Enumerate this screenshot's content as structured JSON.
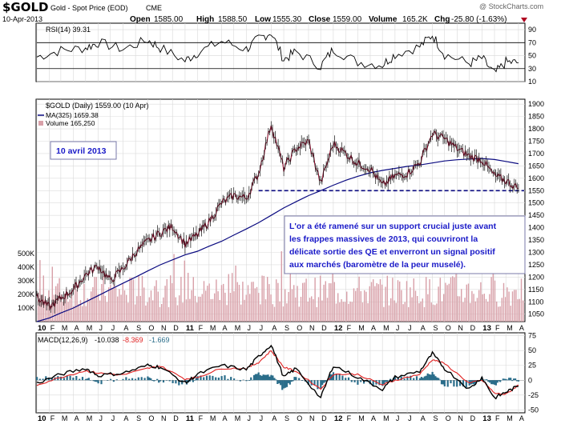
{
  "header": {
    "symbol": "$GOLD",
    "name": "Gold - Spot Price (EOD)",
    "exchange": "CME",
    "copyright": "@ StockCharts.com",
    "date": "10-Apr-2013",
    "open_label": "Open",
    "open": "1585.00",
    "high_label": "High",
    "high": "1588.50",
    "low_label": "Low",
    "low": "1555.30",
    "close_label": "Close",
    "close": "1559.00",
    "volume_label": "Volume",
    "volume": "165.2K",
    "chg_label": "Chg",
    "chg": "-25.80 (-1.63%)"
  },
  "colors": {
    "price": "#8b0a2a",
    "ma": "#0a0a80",
    "volume": "#d8a0a8",
    "macd_line": "#000000",
    "signal_line": "#e02020",
    "histogram": "#2a6d8a",
    "annotation": "#1a1ac8",
    "support": "#0a0a80"
  },
  "chart_data": [
    {
      "panel": "rsi",
      "type": "line",
      "legend": "RSI(14) 39.31",
      "ylim": [
        10,
        100
      ],
      "y_ticks": [
        "90",
        "70",
        "50",
        "30",
        "10"
      ],
      "guides": [
        70,
        30
      ],
      "x": [
        "2010-01",
        "2010-03",
        "2010-05",
        "2010-06",
        "2010-08",
        "2010-10",
        "2010-11",
        "2011-01",
        "2011-02",
        "2011-04",
        "2011-06",
        "2011-07",
        "2011-08",
        "2011-09",
        "2011-10",
        "2011-12",
        "2012-01",
        "2012-03",
        "2012-05",
        "2012-06",
        "2012-08",
        "2012-09",
        "2012-10",
        "2012-12",
        "2013-01",
        "2013-02",
        "2013-03",
        "2013-04"
      ],
      "values": [
        48,
        58,
        62,
        70,
        60,
        74,
        62,
        42,
        55,
        72,
        60,
        76,
        86,
        44,
        56,
        34,
        60,
        40,
        36,
        52,
        64,
        82,
        52,
        38,
        46,
        22,
        40,
        39
      ]
    },
    {
      "panel": "price",
      "type": "line",
      "legend_price": "$GOLD (Daily) 1559.00 (10 Apr)",
      "legend_ma": "MA(325) 1659.38",
      "legend_volume": "Volume 165,250",
      "date_box": "10 avril 2013",
      "annotation": "L'or a été ramené sur un support crucial juste avant les frappes massives de 2013, qui couvriront la délicate sortie des QE et enverront un signal positif aux marchés (baromètre de la peur muselé).",
      "ylim": [
        1020,
        1920
      ],
      "y_ticks": [
        "1900",
        "1850",
        "1800",
        "1750",
        "1700",
        "1650",
        "1600",
        "1550",
        "1500",
        "1450",
        "1400",
        "1350",
        "1300",
        "1250",
        "1200",
        "1150",
        "1100",
        "1050"
      ],
      "support_level": 1550,
      "support_start": "2011-07",
      "x": [
        "2010-01",
        "2010-02",
        "2010-03",
        "2010-04",
        "2010-05",
        "2010-06",
        "2010-07",
        "2010-08",
        "2010-09",
        "2010-10",
        "2010-11",
        "2010-12",
        "2011-01",
        "2011-02",
        "2011-03",
        "2011-04",
        "2011-05",
        "2011-06",
        "2011-07",
        "2011-08",
        "2011-09",
        "2011-10",
        "2011-11",
        "2011-12",
        "2012-01",
        "2012-02",
        "2012-03",
        "2012-04",
        "2012-05",
        "2012-06",
        "2012-07",
        "2012-08",
        "2012-09",
        "2012-10",
        "2012-11",
        "2012-12",
        "2013-01",
        "2013-02",
        "2013-03",
        "2013-04"
      ],
      "values": [
        1118,
        1078,
        1115,
        1150,
        1210,
        1245,
        1185,
        1235,
        1300,
        1345,
        1380,
        1405,
        1335,
        1372,
        1425,
        1500,
        1530,
        1520,
        1620,
        1820,
        1640,
        1720,
        1750,
        1580,
        1740,
        1700,
        1660,
        1640,
        1570,
        1610,
        1620,
        1665,
        1780,
        1760,
        1720,
        1690,
        1675,
        1610,
        1590,
        1559
      ],
      "ma": [
        1020,
        1035,
        1055,
        1075,
        1100,
        1125,
        1150,
        1175,
        1200,
        1225,
        1250,
        1270,
        1290,
        1305,
        1325,
        1345,
        1370,
        1395,
        1420,
        1450,
        1480,
        1505,
        1530,
        1550,
        1572,
        1592,
        1608,
        1622,
        1632,
        1640,
        1648,
        1654,
        1662,
        1670,
        1675,
        1678,
        1680,
        1676,
        1668,
        1659
      ],
      "volume_ylim": [
        0,
        600000
      ],
      "volume_ticks": [
        "500K",
        "400K",
        "300K",
        "200K",
        "100K"
      ]
    },
    {
      "panel": "macd",
      "type": "line",
      "legend_label": "MACD(12,26,9)",
      "legend_macd": "-10.038",
      "legend_signal": "-8.369",
      "legend_hist": "-1.669",
      "ylim": [
        -55,
        80
      ],
      "y_ticks": [
        "75",
        "50",
        "25",
        "0",
        "-25",
        "-50"
      ],
      "x": [
        "2010-01",
        "2010-03",
        "2010-05",
        "2010-06",
        "2010-08",
        "2010-10",
        "2010-11",
        "2011-01",
        "2011-02",
        "2011-04",
        "2011-06",
        "2011-07",
        "2011-08",
        "2011-09",
        "2011-10",
        "2011-12",
        "2012-01",
        "2012-03",
        "2012-05",
        "2012-06",
        "2012-08",
        "2012-09",
        "2012-10",
        "2012-12",
        "2013-01",
        "2013-02",
        "2013-03",
        "2013-04"
      ],
      "macd": [
        -5,
        10,
        20,
        8,
        12,
        25,
        22,
        -5,
        10,
        25,
        18,
        40,
        60,
        5,
        20,
        -30,
        25,
        5,
        -15,
        5,
        15,
        45,
        20,
        -15,
        5,
        -30,
        -20,
        -10
      ],
      "signal": [
        -8,
        5,
        16,
        12,
        9,
        20,
        24,
        2,
        5,
        20,
        20,
        30,
        50,
        22,
        15,
        -15,
        10,
        10,
        -8,
        0,
        10,
        35,
        28,
        -5,
        0,
        -22,
        -24,
        -8
      ]
    }
  ],
  "x_axis": {
    "months": [
      "10",
      "F",
      "M",
      "A",
      "M",
      "J",
      "J",
      "A",
      "S",
      "O",
      "N",
      "D",
      "11",
      "F",
      "M",
      "A",
      "M",
      "J",
      "J",
      "A",
      "S",
      "O",
      "N",
      "D",
      "12",
      "F",
      "M",
      "A",
      "M",
      "J",
      "J",
      "A",
      "S",
      "O",
      "N",
      "D",
      "13",
      "F",
      "M",
      "A"
    ],
    "year_labels": [
      "10",
      "11",
      "12",
      "13"
    ]
  }
}
